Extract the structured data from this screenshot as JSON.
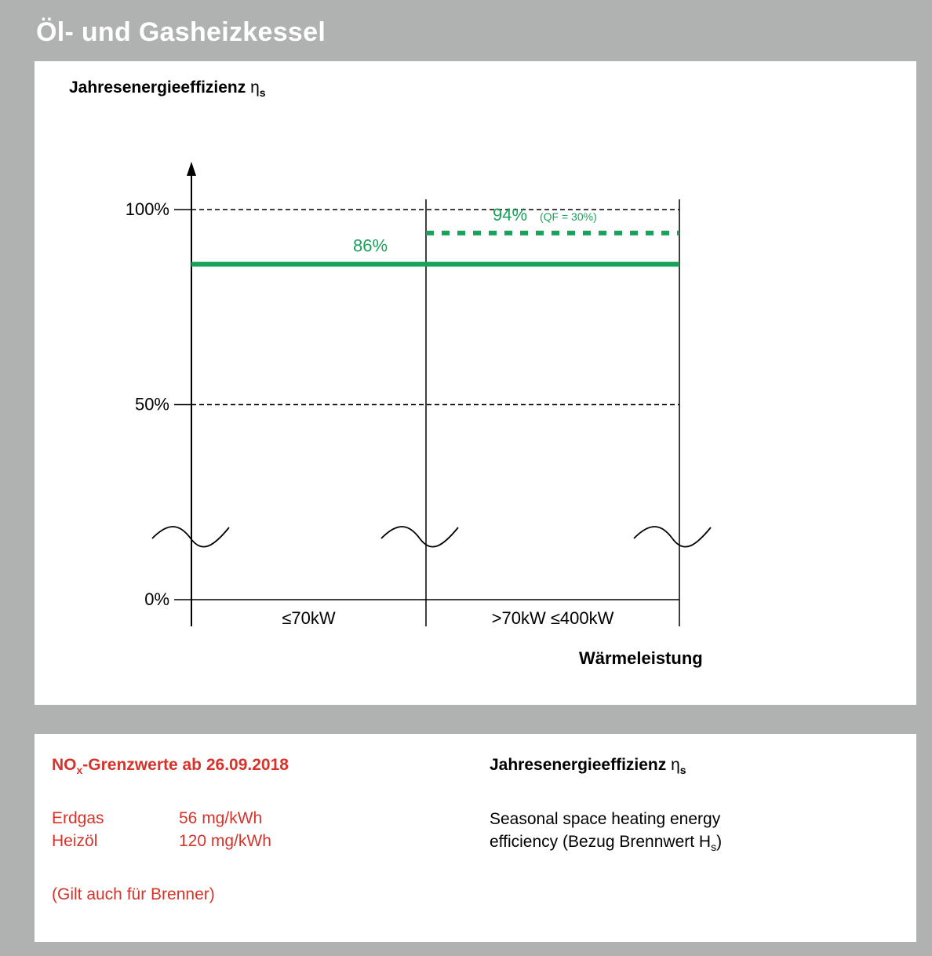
{
  "header": {
    "title": "Öl- und Gasheizkessel"
  },
  "chart_data": {
    "type": "line",
    "ylabel": {
      "text": "Jahresenergieeffizienz ",
      "symbol": "η",
      "sub": "s"
    },
    "xlabel": "Wärmeleistung",
    "ylim": [
      0,
      100
    ],
    "yticks": [
      "0%",
      "50%",
      "100%"
    ],
    "categories": [
      "≤70kW",
      ">70kW ≤400kW"
    ],
    "series": [
      {
        "value": 86,
        "label": "86%",
        "style": "solid",
        "color": "#19a35a",
        "range": [
          "≤70kW",
          ">70kW ≤400kW"
        ]
      },
      {
        "value": 94,
        "label": "94%",
        "note": "(QF = 30%)",
        "style": "dashed",
        "color": "#19a35a",
        "range": [
          ">70kW ≤400kW",
          ">70kW ≤400kW"
        ]
      }
    ],
    "reference_lines": [
      50,
      100
    ],
    "axis_break": true
  },
  "nox": {
    "title": "NO",
    "title_sub": "x",
    "title_rest": "-Grenzwerte ab 26.09.2018",
    "rows": [
      {
        "fuel": "Erdgas",
        "value": "56 mg/kWh"
      },
      {
        "fuel": "Heizöl",
        "value": "120 mg/kWh"
      }
    ],
    "note": "(Gilt auch für Brenner)"
  },
  "definition": {
    "title": "Jahresenergieeffizienz ",
    "symbol": "η",
    "sub": "s",
    "line1": "Seasonal space heating energy",
    "line2": "efficiency (Bezug Brennwert H",
    "line2_sub": "s",
    "line2_end": ")"
  },
  "colors": {
    "accent_green": "#19a35a",
    "accent_red": "#d6332a",
    "frame_gray": "#b0b1b1"
  }
}
